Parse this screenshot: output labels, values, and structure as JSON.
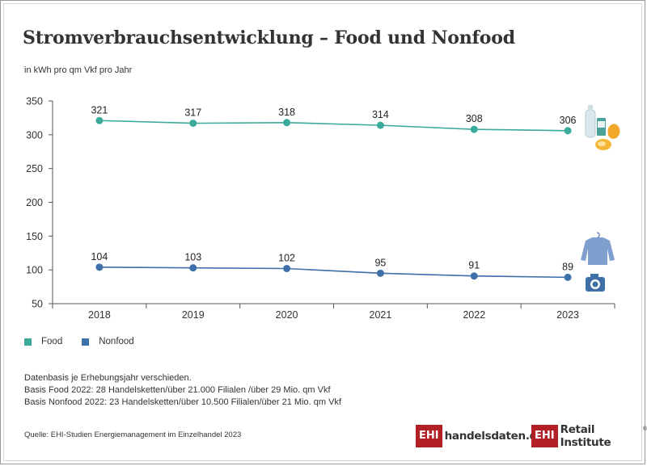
{
  "title": "Stromverbrauchsentwicklung – Food und Nonfood",
  "unit_label": "in kWh pro qm Vkf pro Jahr",
  "chart_data": {
    "type": "line",
    "x": [
      "2018",
      "2019",
      "2020",
      "2021",
      "2022",
      "2023"
    ],
    "series": [
      {
        "name": "Food",
        "values": [
          321,
          317,
          318,
          314,
          308,
          306
        ],
        "color": "#3aab9a"
      },
      {
        "name": "Nonfood",
        "values": [
          104,
          103,
          102,
          95,
          91,
          89
        ],
        "color": "#3d6fa8"
      }
    ],
    "ylim": [
      50,
      350
    ],
    "yticks": [
      50,
      100,
      150,
      200,
      250,
      300,
      350
    ],
    "grid": false,
    "legend_position": "bottom-left"
  },
  "notes": [
    "Datenbasis je Erhebungsjahr verschieden.",
    "Basis Food 2022: 28 Handelsketten/über 21.000 Filialen /über 29 Mio. qm Vkf",
    "Basis Nonfood 2022: 23 Handelsketten/über 10.500 Filialen/über 21 Mio. qm Vkf"
  ],
  "source": "Quelle: EHI-Studien Energiemanagement im Einzelhandel 2023",
  "logos": {
    "ehi_box": "EHI",
    "handelsdaten": "handelsdaten.de",
    "retail_institute": "Retail Institute"
  },
  "icons": [
    "groceries-icon",
    "clothing-camera-icon"
  ]
}
